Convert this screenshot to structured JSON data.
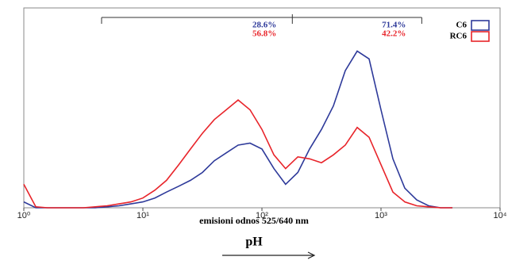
{
  "chart_data": {
    "type": "line",
    "xlabel": "emisioni odnos 525/640 nm",
    "annotation": "pH",
    "xscale": "log",
    "xlim": [
      1,
      10000
    ],
    "xticks": [
      {
        "value": 1,
        "label": "10⁰"
      },
      {
        "value": 10,
        "label": "10¹"
      },
      {
        "value": 100,
        "label": "10²"
      },
      {
        "value": 1000,
        "label": "10³"
      },
      {
        "value": 10000,
        "label": "10⁴"
      }
    ],
    "ylim": [
      0,
      100
    ],
    "legend": "upper right",
    "gates": [
      4.5,
      180,
      2200
    ],
    "x": [
      1,
      1.26,
      1.58,
      2,
      2.51,
      3.16,
      3.98,
      5.01,
      6.31,
      7.94,
      10,
      12.6,
      15.8,
      20,
      25.1,
      31.6,
      39.8,
      50.1,
      63.1,
      79.4,
      100,
      126,
      158,
      200,
      251,
      316,
      398,
      501,
      631,
      794,
      1000,
      1259,
      1585,
      1995,
      2512,
      3162,
      3981
    ],
    "series": [
      {
        "name": "C6",
        "color": "#2e3a9a",
        "values": [
          3,
          0,
          0,
          0,
          0,
          0,
          0,
          0.5,
          1,
          2,
          3,
          5,
          8,
          11,
          14,
          18,
          24,
          28,
          32,
          33,
          30,
          20,
          12,
          18,
          30,
          40,
          52,
          70,
          80,
          76,
          50,
          25,
          10,
          4,
          1,
          0,
          0
        ],
        "gate_values": [
          28.6,
          71.4
        ],
        "gate_value_labels": [
          "28.6%",
          "71.4%"
        ]
      },
      {
        "name": "RC6",
        "color": "#e8242a",
        "values": [
          12,
          0.5,
          0,
          0,
          0,
          0,
          0.5,
          1,
          2,
          3,
          5,
          9,
          14,
          22,
          30,
          38,
          45,
          50,
          55,
          50,
          40,
          27,
          20,
          26,
          25,
          23,
          27,
          32,
          41,
          36,
          22,
          8,
          3,
          1,
          0.5,
          0,
          0
        ],
        "gate_values": [
          56.8,
          42.2
        ],
        "gate_value_labels": [
          "56.8%",
          "42.2%"
        ]
      }
    ]
  }
}
